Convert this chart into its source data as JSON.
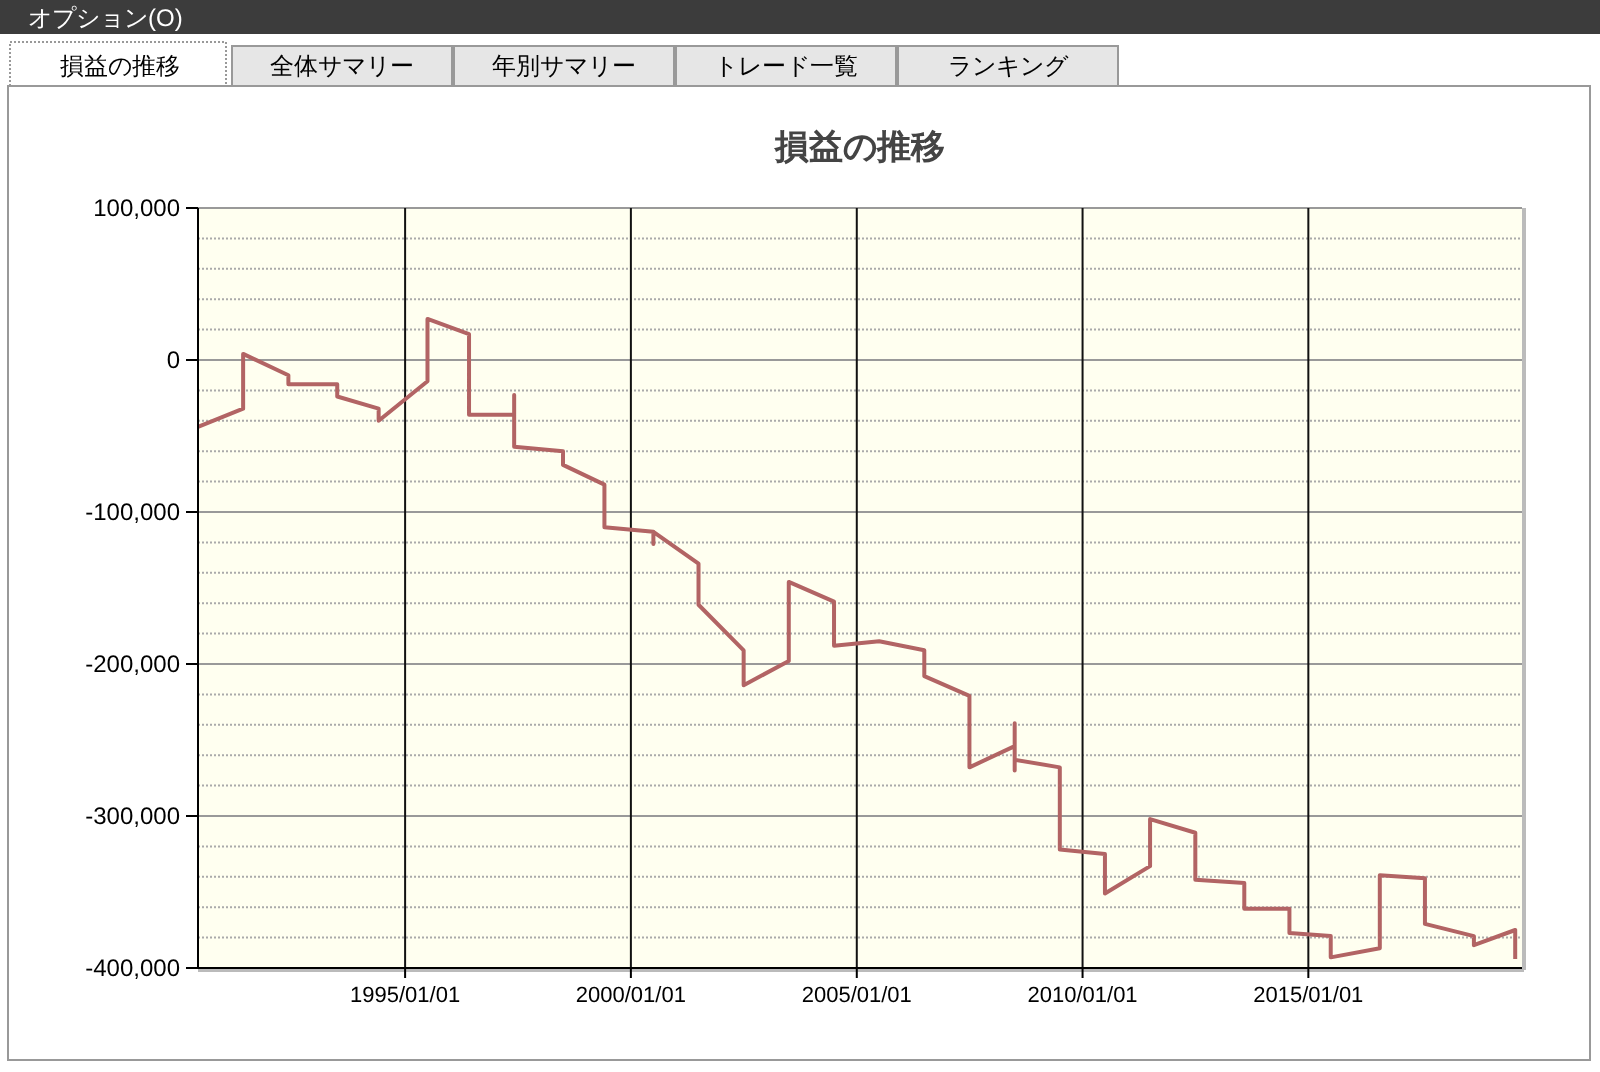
{
  "chart_data": {
    "type": "line",
    "title": "損益の推移",
    "annotations": [
      "オプション(O)",
      "損益の推移",
      "全体サマリー",
      "年別サマリー",
      "トレード一覧",
      "ランキング"
    ],
    "x": [
      "1990-06",
      "1991-06",
      "1991-06",
      "1992-06",
      "1992-06",
      "1993-07",
      "1993-07",
      "1994-06",
      "1994-06",
      "1995-07",
      "1995-07",
      "1996-06",
      "1996-06",
      "1997-06",
      "1997-06",
      "1997-06",
      "1998-07",
      "1998-07",
      "1999-06",
      "1999-06",
      "2000-07",
      "2000-07",
      "2000-07",
      "2001-07",
      "2001-07",
      "2002-07",
      "2002-07",
      "2003-07",
      "2003-07",
      "2004-07",
      "2004-07",
      "2005-07",
      "2006-07",
      "2006-07",
      "2007-07",
      "2007-07",
      "2008-07",
      "2008-07",
      "2008-07",
      "2008-07",
      "2009-07",
      "2009-07",
      "2010-07",
      "2010-07",
      "2011-07",
      "2011-07",
      "2012-07",
      "2012-07",
      "2013-08",
      "2013-08",
      "2014-08",
      "2014-08",
      "2015-07",
      "2015-07",
      "2016-08",
      "2016-08",
      "2017-08",
      "2017-08",
      "2018-09",
      "2018-09",
      "2019-08",
      "2019-08"
    ],
    "series": [
      {
        "color": "#b26464",
        "values": [
          -44000,
          -32000,
          4000,
          -10000,
          -16000,
          -16000,
          -24000,
          -32000,
          -40000,
          -14000,
          27000,
          17000,
          -36000,
          -36000,
          -23000,
          -57000,
          -60000,
          -69000,
          -82000,
          -110000,
          -113000,
          -121000,
          -113000,
          -134000,
          -161000,
          -191000,
          -214000,
          -198000,
          -146000,
          -159000,
          -188000,
          -185000,
          -191000,
          -208000,
          -221000,
          -268000,
          -254000,
          -239000,
          -270000,
          -263000,
          -268000,
          -322000,
          -325000,
          -351000,
          -333000,
          -302000,
          -311000,
          -342000,
          -344000,
          -361000,
          -361000,
          -377000,
          -379000,
          -393000,
          -387000,
          -339000,
          -341000,
          -371000,
          -379000,
          -385000,
          -375000,
          -394000
        ]
      }
    ],
    "xlim": [
      "1990-06-01",
      "2019-09-25"
    ],
    "xticks": [
      {
        "value": "1995-01-01",
        "label": "1995/01/01"
      },
      {
        "value": "2000-01-01",
        "label": "2000/01/01"
      },
      {
        "value": "2005-01-01",
        "label": "2005/01/01"
      },
      {
        "value": "2010-01-01",
        "label": "2010/01/01"
      },
      {
        "value": "2015-01-01",
        "label": "2015/01/01"
      }
    ],
    "ylim": [
      -400000,
      100000
    ],
    "yticks": [
      {
        "value": -400000,
        "label": "-400,000"
      },
      {
        "value": -380000,
        "label": null
      },
      {
        "value": -360000,
        "label": null
      },
      {
        "value": -340000,
        "label": null
      },
      {
        "value": -320000,
        "label": null
      },
      {
        "value": -300000,
        "label": "-300,000"
      },
      {
        "value": -280000,
        "label": null
      },
      {
        "value": -260000,
        "label": null
      },
      {
        "value": -240000,
        "label": null
      },
      {
        "value": -220000,
        "label": null
      },
      {
        "value": -200000,
        "label": "-200,000"
      },
      {
        "value": -180000,
        "label": null
      },
      {
        "value": -160000,
        "label": null
      },
      {
        "value": -140000,
        "label": null
      },
      {
        "value": -120000,
        "label": null
      },
      {
        "value": -100000,
        "label": "-100,000"
      },
      {
        "value": -80000,
        "label": null
      },
      {
        "value": -60000,
        "label": null
      },
      {
        "value": -40000,
        "label": null
      },
      {
        "value": -20000,
        "label": null
      },
      {
        "value": 0,
        "label": "0"
      },
      {
        "value": 20000,
        "label": null
      },
      {
        "value": 40000,
        "label": null
      },
      {
        "value": 60000,
        "label": null
      },
      {
        "value": 80000,
        "label": null
      },
      {
        "value": 100000,
        "label": "100,000"
      }
    ],
    "grid": true,
    "marker": "none",
    "line_style": "solid"
  }
}
